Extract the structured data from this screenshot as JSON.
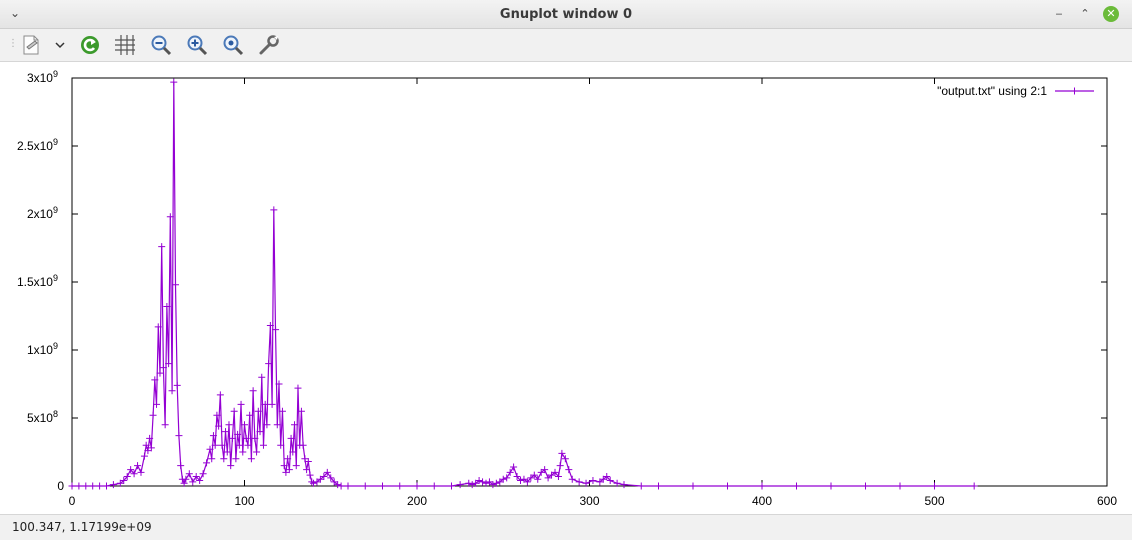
{
  "window": {
    "title": "Gnuplot window 0",
    "menu_icon": "chevron-down-icon",
    "controls": {
      "minimize_label": "‒",
      "restore_label": "⌃",
      "close_label": "✕"
    }
  },
  "toolbar": {
    "items": [
      {
        "name": "export-icon"
      },
      {
        "name": "dropdown-chevron-icon"
      },
      {
        "name": "replot-icon"
      },
      {
        "name": "grid-icon"
      },
      {
        "name": "zoom-out-icon"
      },
      {
        "name": "zoom-in-icon"
      },
      {
        "name": "zoom-autoscale-icon"
      },
      {
        "name": "settings-wrench-icon"
      }
    ]
  },
  "status": {
    "coords": "100.347,  1.17199e+09"
  },
  "colors": {
    "series": "#9400d3",
    "axis": "#000000"
  },
  "chart_data": {
    "type": "line",
    "marker": "plus",
    "xlim": [
      0,
      600
    ],
    "ylim": [
      0,
      3000000000
    ],
    "xticks": [
      0,
      100,
      200,
      300,
      400,
      500,
      600
    ],
    "xtick_labels": [
      "0",
      "100",
      "200",
      "300",
      "400",
      "500",
      "600"
    ],
    "yticks": [
      0,
      500000000,
      1000000000,
      1500000000,
      2000000000,
      2500000000,
      3000000000
    ],
    "ytick_labels": [
      {
        "mant": "0",
        "exp": ""
      },
      {
        "mant": "5x10",
        "exp": "8"
      },
      {
        "mant": "1x10",
        "exp": "9"
      },
      {
        "mant": "1.5x10",
        "exp": "9"
      },
      {
        "mant": "2x10",
        "exp": "9"
      },
      {
        "mant": "2.5x10",
        "exp": "9"
      },
      {
        "mant": "3x10",
        "exp": "9"
      }
    ],
    "grid": false,
    "legend_position": "top-right",
    "series": [
      {
        "name": "\"output.txt\" using 2:1",
        "x": [
          0,
          4,
          8,
          12,
          16,
          20,
          24,
          28,
          30,
          32,
          34,
          36,
          38,
          40,
          42,
          43,
          44,
          45,
          46,
          47,
          48,
          49,
          50,
          51,
          52,
          53,
          54,
          55,
          56,
          57,
          58,
          59,
          60,
          61,
          62,
          63,
          64,
          65,
          66,
          68,
          70,
          72,
          74,
          76,
          78,
          80,
          81,
          82,
          83,
          84,
          85,
          86,
          87,
          88,
          89,
          90,
          91,
          92,
          93,
          94,
          95,
          96,
          97,
          98,
          99,
          100,
          101,
          102,
          103,
          104,
          105,
          106,
          107,
          108,
          109,
          110,
          111,
          112,
          113,
          114,
          115,
          116,
          117,
          118,
          119,
          120,
          121,
          122,
          123,
          124,
          125,
          126,
          127,
          128,
          129,
          130,
          131,
          132,
          133,
          134,
          135,
          136,
          137,
          138,
          139,
          140,
          142,
          144,
          146,
          148,
          150,
          152,
          154,
          156,
          160,
          170,
          180,
          190,
          200,
          210,
          220,
          225,
          230,
          232,
          234,
          236,
          238,
          240,
          242,
          244,
          246,
          248,
          250,
          252,
          254,
          256,
          258,
          260,
          262,
          264,
          266,
          268,
          270,
          272,
          274,
          276,
          278,
          280,
          282,
          283,
          284,
          286,
          288,
          290,
          294,
          298,
          302,
          306,
          308,
          310,
          312,
          316,
          320,
          330,
          340,
          360,
          380,
          400,
          420,
          440,
          460,
          480,
          500,
          523
        ],
        "y": [
          0.0,
          0.0,
          0.0,
          0.0,
          0.0,
          0.0,
          0.01,
          0.02,
          0.04,
          0.07,
          0.12,
          0.09,
          0.15,
          0.1,
          0.22,
          0.3,
          0.26,
          0.35,
          0.28,
          0.52,
          0.78,
          0.6,
          1.17,
          0.83,
          1.76,
          0.87,
          0.45,
          1.32,
          0.9,
          1.98,
          0.7,
          2.97,
          1.48,
          0.74,
          0.37,
          0.15,
          0.05,
          0.02,
          0.05,
          0.09,
          0.03,
          0.07,
          0.04,
          0.09,
          0.17,
          0.27,
          0.2,
          0.37,
          0.3,
          0.52,
          0.44,
          0.67,
          0.3,
          0.2,
          0.4,
          0.25,
          0.45,
          0.15,
          0.35,
          0.55,
          0.2,
          0.38,
          0.3,
          0.6,
          0.25,
          0.45,
          0.35,
          0.3,
          0.52,
          0.2,
          0.7,
          0.35,
          0.25,
          0.55,
          0.4,
          0.8,
          0.3,
          0.6,
          0.45,
          0.9,
          1.18,
          0.6,
          2.03,
          1.15,
          0.45,
          0.75,
          0.3,
          0.55,
          0.15,
          0.1,
          0.2,
          0.12,
          0.35,
          0.25,
          0.45,
          0.15,
          0.72,
          0.3,
          0.55,
          0.3,
          0.2,
          0.12,
          0.18,
          0.08,
          0.03,
          0.02,
          0.03,
          0.05,
          0.07,
          0.1,
          0.06,
          0.03,
          0.01,
          0.0,
          0.0,
          0.0,
          0.0,
          0.0,
          0.0,
          0.0,
          0.0,
          0.01,
          0.02,
          0.01,
          0.02,
          0.04,
          0.03,
          0.02,
          0.03,
          0.01,
          0.02,
          0.03,
          0.05,
          0.06,
          0.1,
          0.14,
          0.07,
          0.04,
          0.05,
          0.03,
          0.06,
          0.08,
          0.05,
          0.1,
          0.12,
          0.06,
          0.08,
          0.1,
          0.07,
          0.15,
          0.24,
          0.2,
          0.12,
          0.05,
          0.03,
          0.02,
          0.04,
          0.03,
          0.05,
          0.07,
          0.04,
          0.02,
          0.01,
          0.0,
          0.0,
          0.0,
          0.0,
          0.0,
          0.0,
          0.0,
          0.0,
          0.0,
          0.0,
          0.0
        ],
        "y_units": "1e9"
      }
    ]
  }
}
